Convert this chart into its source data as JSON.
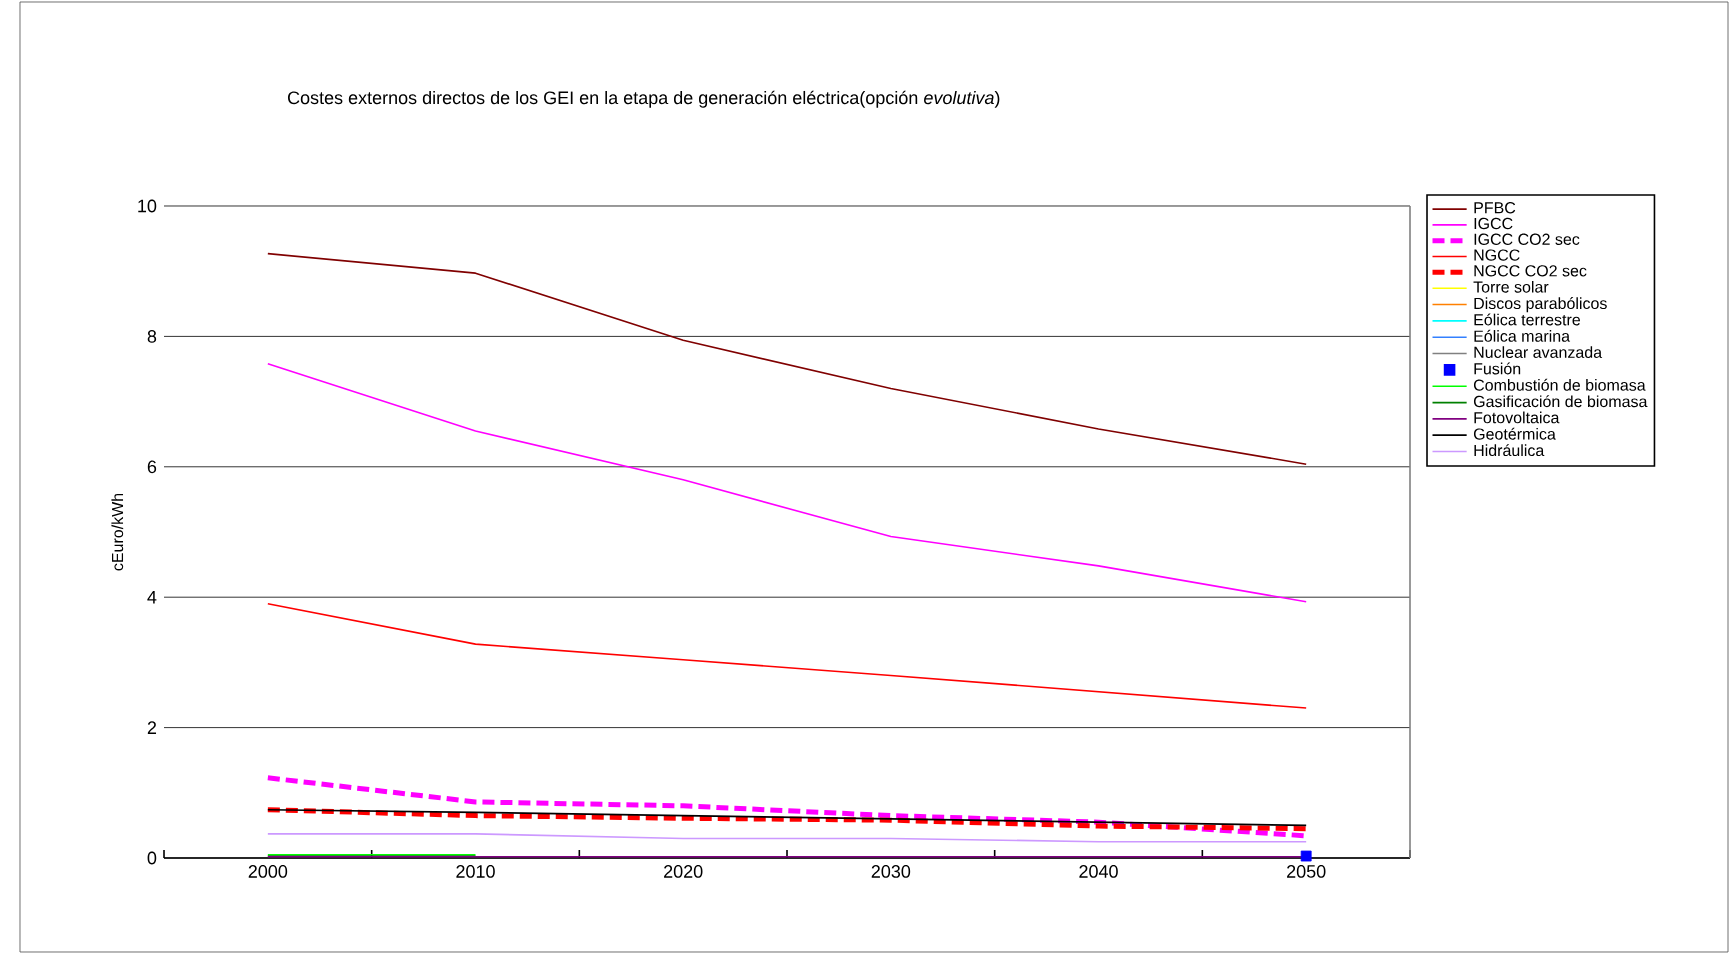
{
  "chart_data": {
    "type": "line",
    "title": "Costes externos directos de los GEI en la etapa de generación eléctrica(opción *evolutiva*)",
    "ylabel": "cEuro/kWh",
    "categories": [
      "2000",
      "2010",
      "2020",
      "2030",
      "2040",
      "2050"
    ],
    "ylim": [
      0,
      10
    ],
    "yticks": [
      0,
      2,
      4,
      6,
      8,
      10
    ],
    "grid": "y",
    "legend": "right",
    "marker": "none",
    "series": [
      {
        "name": "PFBC",
        "color": "#800000",
        "values": [
          9.27,
          8.97,
          7.94,
          7.2,
          6.58,
          6.04
        ]
      },
      {
        "name": "IGCC",
        "color": "#ff00ff",
        "values": [
          7.58,
          6.55,
          5.8,
          4.93,
          4.48,
          3.93
        ]
      },
      {
        "name": "IGCC CO2 sec",
        "color": "#ff00ff",
        "line_style": "dashed",
        "values": [
          1.23,
          0.86,
          0.8,
          0.65,
          0.55,
          0.34
        ]
      },
      {
        "name": "NGCC",
        "color": "#ff0000",
        "values": [
          3.9,
          3.28,
          3.04,
          2.8,
          2.55,
          2.3
        ]
      },
      {
        "name": "NGCC CO2 sec",
        "color": "#ff0000",
        "line_style": "dashed",
        "values": [
          0.74,
          0.65,
          0.61,
          0.58,
          0.49,
          0.45
        ]
      },
      {
        "name": "Torre solar",
        "color": "#ffff00",
        "values": [
          null,
          null,
          null,
          null,
          null,
          null
        ]
      },
      {
        "name": "Discos parabólicos",
        "color": "#ff8000",
        "values": [
          null,
          null,
          null,
          null,
          null,
          null
        ]
      },
      {
        "name": "Eólica terrestre",
        "color": "#00ffff",
        "values": [
          null,
          null,
          null,
          null,
          null,
          null
        ]
      },
      {
        "name": "Eólica marina",
        "color": "#3380ff",
        "values": [
          null,
          null,
          null,
          null,
          null,
          null
        ]
      },
      {
        "name": "Nuclear avanzada",
        "color": "#808080",
        "values": [
          null,
          null,
          null,
          null,
          null,
          null
        ]
      },
      {
        "name": "Fusión",
        "color": "#0000ff",
        "type": "scatter",
        "marker": "square",
        "values": [
          null,
          null,
          null,
          null,
          null,
          0.03
        ]
      },
      {
        "name": "Combustión de biomasa",
        "color": "#00ff00",
        "values": [
          0.05,
          0.05,
          null,
          null,
          null,
          null
        ]
      },
      {
        "name": "Gasificación de biomasa",
        "color": "#008000",
        "values": [
          0.03,
          0.03,
          null,
          null,
          null,
          null
        ]
      },
      {
        "name": "Fotovoltaica",
        "color": "#800080",
        "values": [
          0.02,
          0.02,
          0.02,
          0.02,
          0.02,
          0.02
        ]
      },
      {
        "name": "Geotérmica",
        "color": "#000000",
        "values": [
          0.74,
          0.7,
          0.65,
          0.6,
          0.55,
          0.5
        ]
      },
      {
        "name": "Hidráulica",
        "color": "#cc99ff",
        "values": [
          0.37,
          0.37,
          0.3,
          0.3,
          0.25,
          0.25
        ]
      }
    ]
  }
}
